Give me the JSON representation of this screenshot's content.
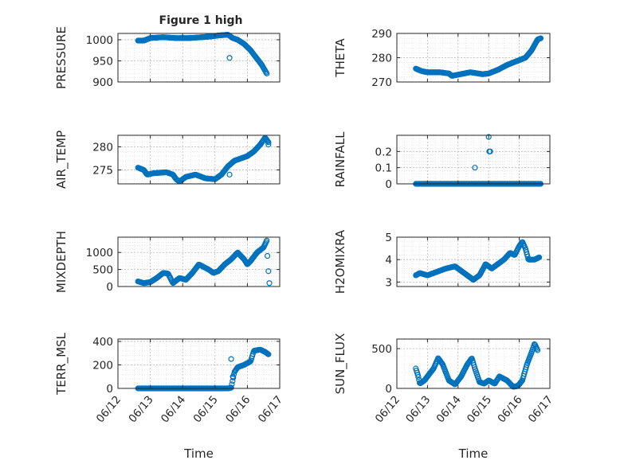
{
  "figure_title": "Figure 1 high",
  "chart_data": [
    {
      "type": "scatter",
      "name": "PRESSURE",
      "ylabel": "PRESSURE",
      "title": "Figure 1 high",
      "xlabel": "",
      "ylim": [
        900,
        1015
      ],
      "yticks": [
        900,
        950,
        1000
      ],
      "xlim": [
        "06/12",
        "06/17"
      ],
      "xticks": [
        "06/12",
        "06/13",
        "06/14",
        "06/15",
        "06/16",
        "06/17"
      ],
      "grid": true,
      "anchors": [
        [
          0.62,
          998
        ],
        [
          0.8,
          998
        ],
        [
          1.0,
          1004
        ],
        [
          1.4,
          1006
        ],
        [
          1.8,
          1004
        ],
        [
          2.2,
          1004
        ],
        [
          2.6,
          1006
        ],
        [
          2.9,
          1008
        ],
        [
          3.1,
          1010
        ],
        [
          3.4,
          1012
        ],
        [
          3.55,
          1004
        ],
        [
          3.7,
          1000
        ],
        [
          3.9,
          990
        ],
        [
          4.1,
          975
        ],
        [
          4.3,
          955
        ],
        [
          4.45,
          940
        ],
        [
          4.6,
          920
        ]
      ],
      "extra_points": [
        [
          3.45,
          957
        ]
      ]
    },
    {
      "type": "scatter",
      "name": "THETA",
      "ylabel": "THETA",
      "xlabel": "",
      "ylim": [
        270,
        290
      ],
      "yticks": [
        270,
        280,
        290
      ],
      "xlim": [
        "06/12",
        "06/17"
      ],
      "xticks": [
        "06/12",
        "06/13",
        "06/14",
        "06/15",
        "06/16",
        "06/17"
      ],
      "grid": true,
      "anchors": [
        [
          0.62,
          275.5
        ],
        [
          0.8,
          274.5
        ],
        [
          1.0,
          274
        ],
        [
          1.4,
          274
        ],
        [
          1.7,
          273.5
        ],
        [
          1.8,
          272.5
        ],
        [
          2.0,
          273
        ],
        [
          2.4,
          274
        ],
        [
          2.8,
          273.2
        ],
        [
          3.0,
          273.5
        ],
        [
          3.3,
          275
        ],
        [
          3.6,
          277
        ],
        [
          3.9,
          278.5
        ],
        [
          4.2,
          280
        ],
        [
          4.4,
          283
        ],
        [
          4.6,
          287.5
        ],
        [
          4.7,
          288
        ]
      ],
      "extra_points": []
    },
    {
      "type": "scatter",
      "name": "AIR_TEMP",
      "ylabel": "AIR_TEMP",
      "xlabel": "",
      "ylim": [
        272,
        282.5
      ],
      "yticks": [
        275,
        280
      ],
      "xlim": [
        "06/12",
        "06/17"
      ],
      "xticks": [
        "06/12",
        "06/13",
        "06/14",
        "06/15",
        "06/16",
        "06/17"
      ],
      "grid": true,
      "anchors": [
        [
          0.62,
          275.5
        ],
        [
          0.8,
          275
        ],
        [
          0.9,
          274
        ],
        [
          1.1,
          274.3
        ],
        [
          1.5,
          274.5
        ],
        [
          1.7,
          274
        ],
        [
          1.8,
          273
        ],
        [
          1.9,
          272.5
        ],
        [
          2.1,
          273.5
        ],
        [
          2.4,
          274
        ],
        [
          2.7,
          273.2
        ],
        [
          3.0,
          273
        ],
        [
          3.2,
          274
        ],
        [
          3.4,
          275.8
        ],
        [
          3.6,
          277
        ],
        [
          3.8,
          277.5
        ],
        [
          4.0,
          278
        ],
        [
          4.2,
          279
        ],
        [
          4.4,
          280.5
        ],
        [
          4.55,
          282
        ],
        [
          4.65,
          281
        ]
      ],
      "extra_points": [
        [
          3.45,
          274
        ],
        [
          4.65,
          280.5
        ]
      ]
    },
    {
      "type": "scatter",
      "name": "RAINFALL",
      "ylabel": "RAINFALL",
      "xlabel": "",
      "ylim": [
        0,
        0.3
      ],
      "yticks": [
        0,
        0.1,
        0.2
      ],
      "xlim": [
        "06/12",
        "06/17"
      ],
      "xticks": [
        "06/12",
        "06/13",
        "06/14",
        "06/15",
        "06/16",
        "06/17"
      ],
      "grid": true,
      "anchors": [
        [
          0.62,
          0
        ],
        [
          4.7,
          0
        ]
      ],
      "extra_points": [
        [
          2.55,
          0.1
        ],
        [
          3.0,
          0.29
        ],
        [
          3.02,
          0.2
        ],
        [
          3.05,
          0.2
        ]
      ]
    },
    {
      "type": "scatter",
      "name": "MIXDEPTH",
      "ylabel": "MIXDEPTH",
      "xlabel": "",
      "ylim": [
        0,
        1450
      ],
      "yticks": [
        0,
        500,
        1000
      ],
      "xlim": [
        "06/12",
        "06/17"
      ],
      "xticks": [
        "06/12",
        "06/13",
        "06/14",
        "06/15",
        "06/16",
        "06/17"
      ],
      "grid": true,
      "anchors": [
        [
          0.62,
          150
        ],
        [
          0.8,
          100
        ],
        [
          1.0,
          130
        ],
        [
          1.2,
          250
        ],
        [
          1.4,
          400
        ],
        [
          1.55,
          380
        ],
        [
          1.7,
          100
        ],
        [
          1.9,
          250
        ],
        [
          2.1,
          200
        ],
        [
          2.3,
          400
        ],
        [
          2.5,
          650
        ],
        [
          2.8,
          500
        ],
        [
          2.95,
          400
        ],
        [
          3.1,
          450
        ],
        [
          3.3,
          650
        ],
        [
          3.5,
          800
        ],
        [
          3.7,
          1000
        ],
        [
          3.9,
          800
        ],
        [
          4.0,
          650
        ],
        [
          4.1,
          750
        ],
        [
          4.3,
          1000
        ],
        [
          4.5,
          1150
        ],
        [
          4.6,
          1350
        ]
      ],
      "extra_points": [
        [
          4.62,
          900
        ],
        [
          4.65,
          450
        ],
        [
          4.68,
          100
        ]
      ]
    },
    {
      "type": "scatter",
      "name": "H2OMIXRA",
      "ylabel": "H2OMIXRA",
      "xlabel": "",
      "ylim": [
        2.8,
        5
      ],
      "yticks": [
        3,
        4,
        5
      ],
      "xlim": [
        "06/12",
        "06/17"
      ],
      "xticks": [
        "06/12",
        "06/13",
        "06/14",
        "06/15",
        "06/16",
        "06/17"
      ],
      "grid": true,
      "anchors": [
        [
          0.62,
          3.3
        ],
        [
          0.75,
          3.4
        ],
        [
          1.0,
          3.3
        ],
        [
          1.3,
          3.45
        ],
        [
          1.6,
          3.6
        ],
        [
          1.9,
          3.7
        ],
        [
          2.1,
          3.5
        ],
        [
          2.3,
          3.3
        ],
        [
          2.5,
          3.1
        ],
        [
          2.7,
          3.3
        ],
        [
          2.9,
          3.8
        ],
        [
          3.1,
          3.6
        ],
        [
          3.3,
          3.8
        ],
        [
          3.5,
          4.0
        ],
        [
          3.7,
          4.3
        ],
        [
          3.85,
          4.2
        ],
        [
          4.0,
          4.6
        ],
        [
          4.1,
          4.8
        ],
        [
          4.2,
          4.5
        ],
        [
          4.3,
          4.0
        ],
        [
          4.5,
          4.0
        ],
        [
          4.65,
          4.1
        ]
      ],
      "extra_points": []
    },
    {
      "type": "scatter",
      "name": "TERR_MSL",
      "ylabel": "TERR_MSL",
      "xlabel": "Time",
      "ylim": [
        0,
        420
      ],
      "yticks": [
        0,
        200,
        400
      ],
      "xlim": [
        "06/12",
        "06/17"
      ],
      "xticks": [
        "06/12",
        "06/13",
        "06/14",
        "06/15",
        "06/16",
        "06/17"
      ],
      "grid": true,
      "anchors": [
        [
          0.62,
          0
        ],
        [
          3.4,
          0
        ],
        [
          3.5,
          5
        ],
        [
          3.6,
          140
        ],
        [
          3.7,
          180
        ],
        [
          3.9,
          200
        ],
        [
          4.1,
          230
        ],
        [
          4.2,
          320
        ],
        [
          4.4,
          330
        ],
        [
          4.55,
          310
        ],
        [
          4.65,
          290
        ]
      ],
      "extra_points": [
        [
          3.5,
          250
        ],
        [
          3.55,
          100
        ]
      ]
    },
    {
      "type": "scatter",
      "name": "SUN_FLUX",
      "ylabel": "SUN_FLUX",
      "xlabel": "Time",
      "ylim": [
        0,
        620
      ],
      "yticks": [
        0,
        500
      ],
      "xlim": [
        "06/12",
        "06/17"
      ],
      "xticks": [
        "06/12",
        "06/13",
        "06/14",
        "06/15",
        "06/16",
        "06/17"
      ],
      "grid": true,
      "anchors": [
        [
          0.62,
          250
        ],
        [
          0.7,
          150
        ],
        [
          0.75,
          60
        ],
        [
          0.9,
          100
        ],
        [
          1.2,
          250
        ],
        [
          1.35,
          380
        ],
        [
          1.5,
          300
        ],
        [
          1.7,
          100
        ],
        [
          1.9,
          50
        ],
        [
          2.1,
          150
        ],
        [
          2.3,
          300
        ],
        [
          2.45,
          380
        ],
        [
          2.55,
          250
        ],
        [
          2.7,
          80
        ],
        [
          2.85,
          60
        ],
        [
          3.0,
          100
        ],
        [
          3.2,
          60
        ],
        [
          3.35,
          150
        ],
        [
          3.6,
          100
        ],
        [
          3.8,
          20
        ],
        [
          3.95,
          30
        ],
        [
          4.1,
          100
        ],
        [
          4.25,
          300
        ],
        [
          4.4,
          450
        ],
        [
          4.5,
          560
        ],
        [
          4.6,
          480
        ]
      ],
      "extra_points": []
    }
  ]
}
